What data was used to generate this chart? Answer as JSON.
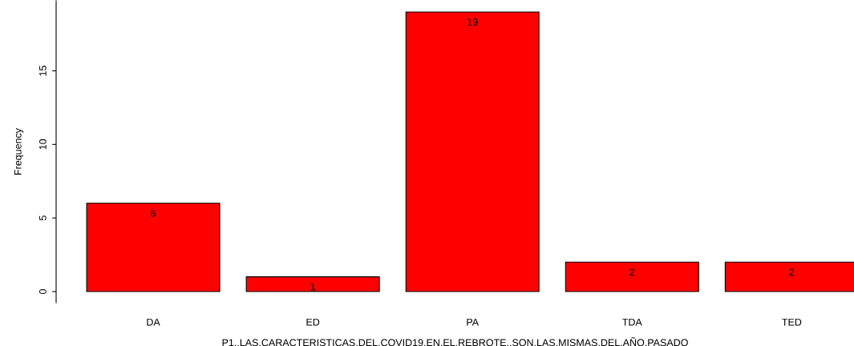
{
  "chart_data": {
    "type": "bar",
    "categories": [
      "DA",
      "ED",
      "PA",
      "TDA",
      "TED"
    ],
    "values": [
      6,
      1,
      19,
      2,
      2
    ],
    "color": "#ff0000",
    "ylim": [
      -0.76,
      19.76
    ],
    "yticks": [
      0,
      5,
      10,
      15
    ],
    "xlabel": "P1..LAS.CARACTERISTICAS.DEL.COVID19.EN.EL.REBROTE..SON.LAS.MISMAS.DEL.AÑO.PASADO",
    "ylabel": "Frequency",
    "data_labels": true,
    "grid": false,
    "legend": false
  }
}
